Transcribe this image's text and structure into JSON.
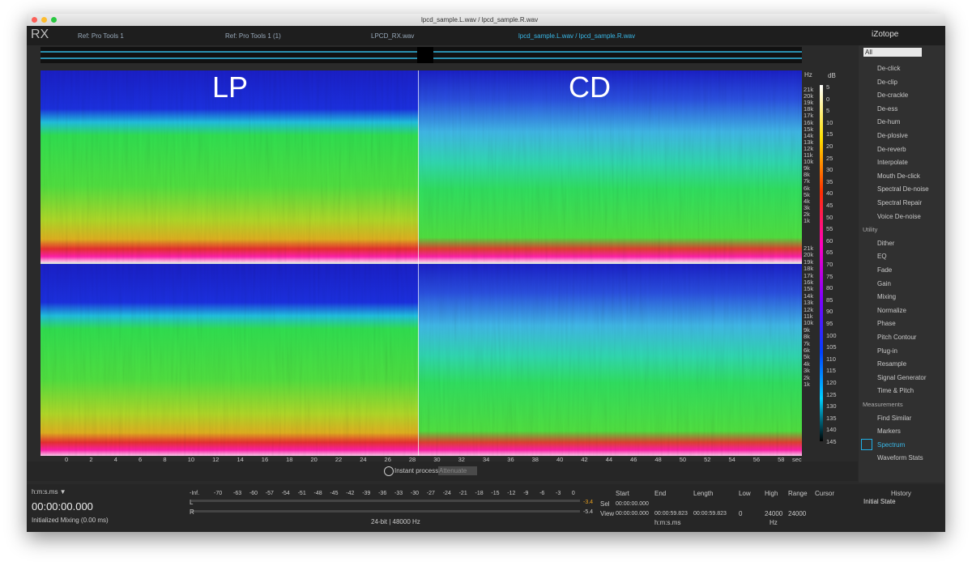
{
  "window_title": "lpcd_sample.L.wav / lpcd_sample.R.wav",
  "logo": "RX",
  "tabs": [
    "Ref: Pro Tools 1",
    "Ref: Pro Tools 1 (1)",
    "LPCD_RX.wav",
    "lpcd_sample.L.wav / lpcd_sample.R.wav"
  ],
  "brand": "iZotope",
  "spectrogram": {
    "labels": [
      "LP",
      "CD"
    ],
    "hz_unit": "Hz",
    "hz_ticks": [
      "21k",
      "20k",
      "19k",
      "18k",
      "17k",
      "16k",
      "15k",
      "14k",
      "13k",
      "12k",
      "11k",
      "10k",
      "9k",
      "8k",
      "7k",
      "6k",
      "5k",
      "4k",
      "3k",
      "2k",
      "1k"
    ],
    "db_unit": "dB",
    "db_ticks": [
      5,
      0,
      5,
      10,
      15,
      20,
      25,
      30,
      35,
      40,
      45,
      50,
      55,
      60,
      65,
      70,
      75,
      80,
      85,
      90,
      95,
      100,
      105,
      110,
      115,
      120,
      125,
      130,
      135,
      140,
      145
    ],
    "time_ticks": [
      0,
      2,
      4,
      6,
      8,
      10,
      12,
      14,
      16,
      18,
      20,
      22,
      24,
      26,
      28,
      30,
      32,
      34,
      36,
      38,
      40,
      42,
      44,
      46,
      48,
      50,
      52,
      54,
      56,
      58
    ],
    "time_unit": "sec"
  },
  "toolbar": {
    "instant_process": "Instant process",
    "mode": "Attenuate"
  },
  "modules": {
    "filter": "All",
    "repair": [
      "De-click",
      "De-clip",
      "De-crackle",
      "De-ess",
      "De-hum",
      "De-plosive",
      "De-reverb",
      "Interpolate",
      "Mouth De-click",
      "Spectral De-noise",
      "Spectral Repair",
      "Voice De-noise"
    ],
    "utility": {
      "title": "Utility",
      "items": [
        "Dither",
        "EQ",
        "Fade",
        "Gain",
        "Mixing",
        "Normalize",
        "Phase",
        "Pitch Contour",
        "Plug-in",
        "Resample",
        "Signal Generator",
        "Time & Pitch"
      ]
    },
    "measurements": {
      "title": "Measurements",
      "items": [
        "Find Similar",
        "Markers",
        "Spectrum",
        "Waveform Stats"
      ]
    }
  },
  "status": {
    "time_format": "h:m:s.ms ▼",
    "time": "00:00:00.000",
    "message": "Initialized Mixing (0.00 ms)"
  },
  "meter": {
    "scale": [
      "-Inf.",
      "-70",
      "-63",
      "-60",
      "-57",
      "-54",
      "-51",
      "-48",
      "-45",
      "-42",
      "-39",
      "-36",
      "-33",
      "-30",
      "-27",
      "-24",
      "-21",
      "-18",
      "-15",
      "-12",
      "-9",
      "-6",
      "-3",
      "0"
    ],
    "channels": [
      "L",
      "R"
    ],
    "peaks": [
      "-3.4",
      "-5.4"
    ],
    "format": "24-bit | 48000 Hz"
  },
  "selection": {
    "headers": [
      "Start",
      "End",
      "Length"
    ],
    "rows": [
      {
        "label": "Sel",
        "values": [
          "00:00:00.000"
        ]
      },
      {
        "label": "View",
        "values": [
          "00:00:00.000",
          "00:00:59.823",
          "00:00:59.823"
        ]
      }
    ],
    "unit": "h:m:s.ms"
  },
  "frequency": {
    "headers": [
      "Low",
      "High",
      "Range"
    ],
    "values": [
      "0",
      "24000",
      "24000"
    ],
    "unit": "Hz"
  },
  "cursor": "Cursor",
  "history": {
    "title": "History",
    "items": [
      "Initial State"
    ]
  }
}
